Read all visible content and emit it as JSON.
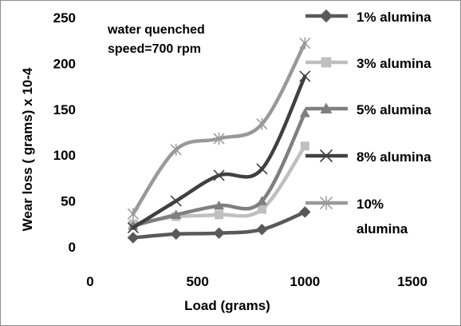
{
  "chart_data": {
    "type": "line",
    "title": "",
    "xlabel": "Load (grams)",
    "ylabel": "Wear loss ( grams) x 10-4",
    "xlim": [
      0,
      1500
    ],
    "ylim": [
      0,
      250
    ],
    "xticks": [
      "0",
      "500",
      "1000",
      "1500"
    ],
    "yticks": [
      "0",
      "50",
      "100",
      "150",
      "200",
      "250"
    ],
    "grid": false,
    "legend_position": "right",
    "annotation_lines": [
      "water quenched",
      "speed=700 rpm"
    ],
    "x": [
      200,
      400,
      600,
      800,
      1000
    ],
    "series": [
      {
        "name": "1% alumina",
        "label_lines": [
          "1% alumina"
        ],
        "values": [
          10,
          14,
          15,
          19,
          38
        ],
        "color": "#595959",
        "marker": "diamond"
      },
      {
        "name": "3% alumina",
        "label_lines": [
          "3% alumina"
        ],
        "values": [
          25,
          33,
          35,
          41,
          110
        ],
        "color": "#bfbfbf",
        "marker": "square"
      },
      {
        "name": "5% alumina",
        "label_lines": [
          "5% alumina"
        ],
        "values": [
          23,
          35,
          45,
          50,
          146
        ],
        "color": "#7f7f7f",
        "marker": "triangle"
      },
      {
        "name": "8% alumina",
        "label_lines": [
          "8% alumina"
        ],
        "values": [
          21,
          50,
          78,
          85,
          186
        ],
        "color": "#404040",
        "marker": "x"
      },
      {
        "name": "10% alumina",
        "label_lines": [
          "10%",
          "alumina"
        ],
        "values": [
          36,
          106,
          118,
          134,
          222
        ],
        "color": "#999999",
        "marker": "star"
      }
    ]
  }
}
